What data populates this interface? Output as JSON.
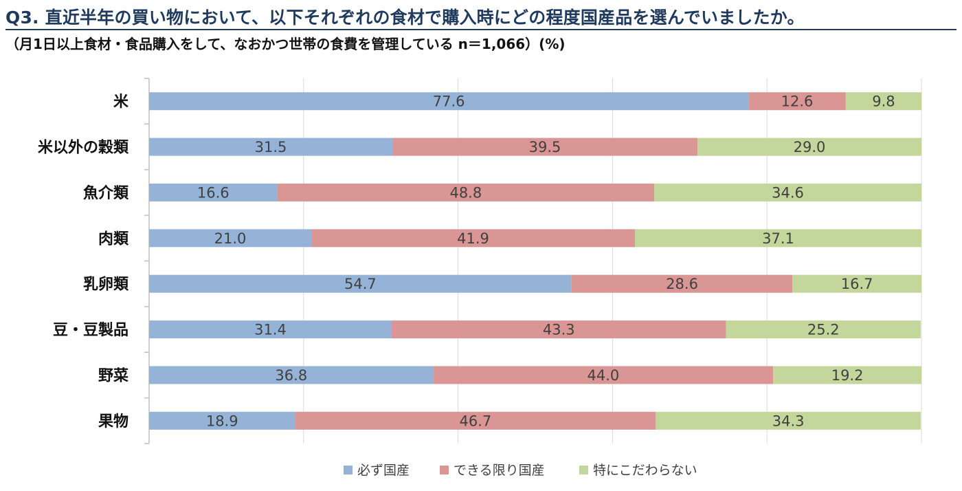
{
  "title": "Q3. 直近半年の買い物において、以下それぞれの食材で購入時にどの程度国産品を選んでいましたか。",
  "subtitle": "（月1日以上食材・食品購入をして、なおかつ世帯の食費を管理している n＝1,066）(%)",
  "colors": {
    "series": [
      "#95b3d7",
      "#d99694",
      "#c3d69b"
    ],
    "grid": "#d9d9d9",
    "axis": "#bfbfbf"
  },
  "chart_data": {
    "type": "bar",
    "orientation": "horizontal",
    "stacked": true,
    "title": "Q3. 直近半年の買い物において、以下それぞれの食材で購入時にどの程度国産品を選んでいましたか。",
    "subtitle": "（月1日以上食材・食品購入をして、なおかつ世帯の食費を管理している n＝1,066）(%)",
    "categories": [
      "米",
      "米以外の穀類",
      "魚介類",
      "肉類",
      "乳卵類",
      "豆・豆製品",
      "野菜",
      "果物"
    ],
    "series": [
      {
        "name": "必ず国産",
        "values": [
          77.6,
          31.5,
          16.6,
          21.0,
          54.7,
          31.4,
          36.8,
          18.9
        ]
      },
      {
        "name": "できる限り国産",
        "values": [
          12.6,
          39.5,
          48.8,
          41.9,
          28.6,
          43.3,
          44.0,
          46.7
        ]
      },
      {
        "name": "特にこだわらない",
        "values": [
          9.8,
          29.0,
          34.6,
          37.1,
          16.7,
          25.2,
          19.2,
          34.3
        ]
      }
    ],
    "xlim": [
      0,
      100
    ],
    "grid": true,
    "legend_position": "bottom"
  }
}
